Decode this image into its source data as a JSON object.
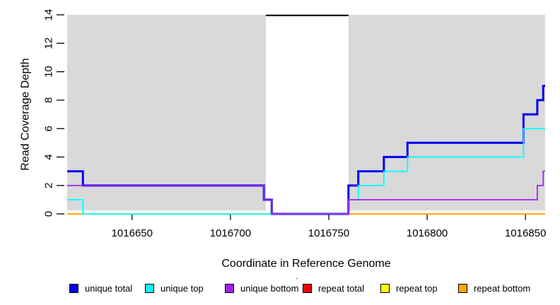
{
  "chart_data": {
    "type": "line",
    "subtype": "step-function-coverage-plot",
    "title": "",
    "xlabel": "Coordinate in Reference Genome",
    "ylabel": "Read Coverage Depth",
    "x_range": [
      1016617,
      1016860
    ],
    "y_range": [
      0,
      14
    ],
    "x_ticks": [
      1016650,
      1016700,
      1016750,
      1016800,
      1016850
    ],
    "y_ticks": [
      0,
      2,
      4,
      6,
      8,
      10,
      12,
      14
    ],
    "grid": false,
    "plot_bg": "#d9d9d9",
    "page_bg": "#ffffff",
    "masked_region": {
      "start": 1016718,
      "end": 1016760,
      "marker_value": 14,
      "fill": "#ffffff",
      "line_color": "#000000"
    },
    "draw_order": [
      "unique total",
      "repeat total",
      "repeat top",
      "repeat bottom",
      "unique top",
      "unique bottom"
    ],
    "series": [
      {
        "name": "unique total",
        "color": "#0000ee",
        "line_width": 3,
        "points": [
          [
            1016617,
            3
          ],
          [
            1016625,
            2
          ],
          [
            1016717,
            1
          ],
          [
            1016721,
            0
          ],
          [
            1016760,
            2
          ],
          [
            1016765,
            3
          ],
          [
            1016778,
            4
          ],
          [
            1016790,
            5
          ],
          [
            1016849,
            7
          ],
          [
            1016856,
            8
          ],
          [
            1016859,
            9
          ],
          [
            1016860,
            9
          ]
        ]
      },
      {
        "name": "unique top",
        "color": "#00ffff",
        "line_width": 1.8,
        "points": [
          [
            1016617,
            1
          ],
          [
            1016625,
            0
          ],
          [
            1016760,
            1
          ],
          [
            1016765,
            2
          ],
          [
            1016778,
            3
          ],
          [
            1016790,
            4
          ],
          [
            1016849,
            6
          ],
          [
            1016860,
            6
          ]
        ]
      },
      {
        "name": "unique bottom",
        "color": "#a020f0",
        "line_width": 1.7,
        "points": [
          [
            1016617,
            2
          ],
          [
            1016717,
            1
          ],
          [
            1016721,
            0
          ],
          [
            1016760,
            1
          ],
          [
            1016856,
            2
          ],
          [
            1016859,
            3
          ],
          [
            1016860,
            3
          ]
        ]
      },
      {
        "name": "repeat total",
        "color": "#ee0000",
        "line_width": 1.5,
        "points": [
          [
            1016617,
            0
          ],
          [
            1016860,
            0
          ]
        ]
      },
      {
        "name": "repeat top",
        "color": "#ffff00",
        "line_width": 1.5,
        "points": [
          [
            1016617,
            0
          ],
          [
            1016860,
            0
          ]
        ]
      },
      {
        "name": "repeat bottom",
        "color": "#ffa500",
        "line_width": 1.8,
        "points": [
          [
            1016617,
            0
          ],
          [
            1016860,
            0
          ]
        ]
      }
    ]
  },
  "legend": {
    "items": [
      {
        "label": "unique total",
        "color": "#0000ee"
      },
      {
        "label": "unique top",
        "color": "#00ffff"
      },
      {
        "label": "unique bottom",
        "color": "#a020f0"
      },
      {
        "label": "repeat total",
        "color": "#ee0000"
      },
      {
        "label": "repeat top",
        "color": "#ffff00"
      },
      {
        "label": "repeat bottom",
        "color": "#ffa500"
      }
    ],
    "stray_mark": "´"
  }
}
